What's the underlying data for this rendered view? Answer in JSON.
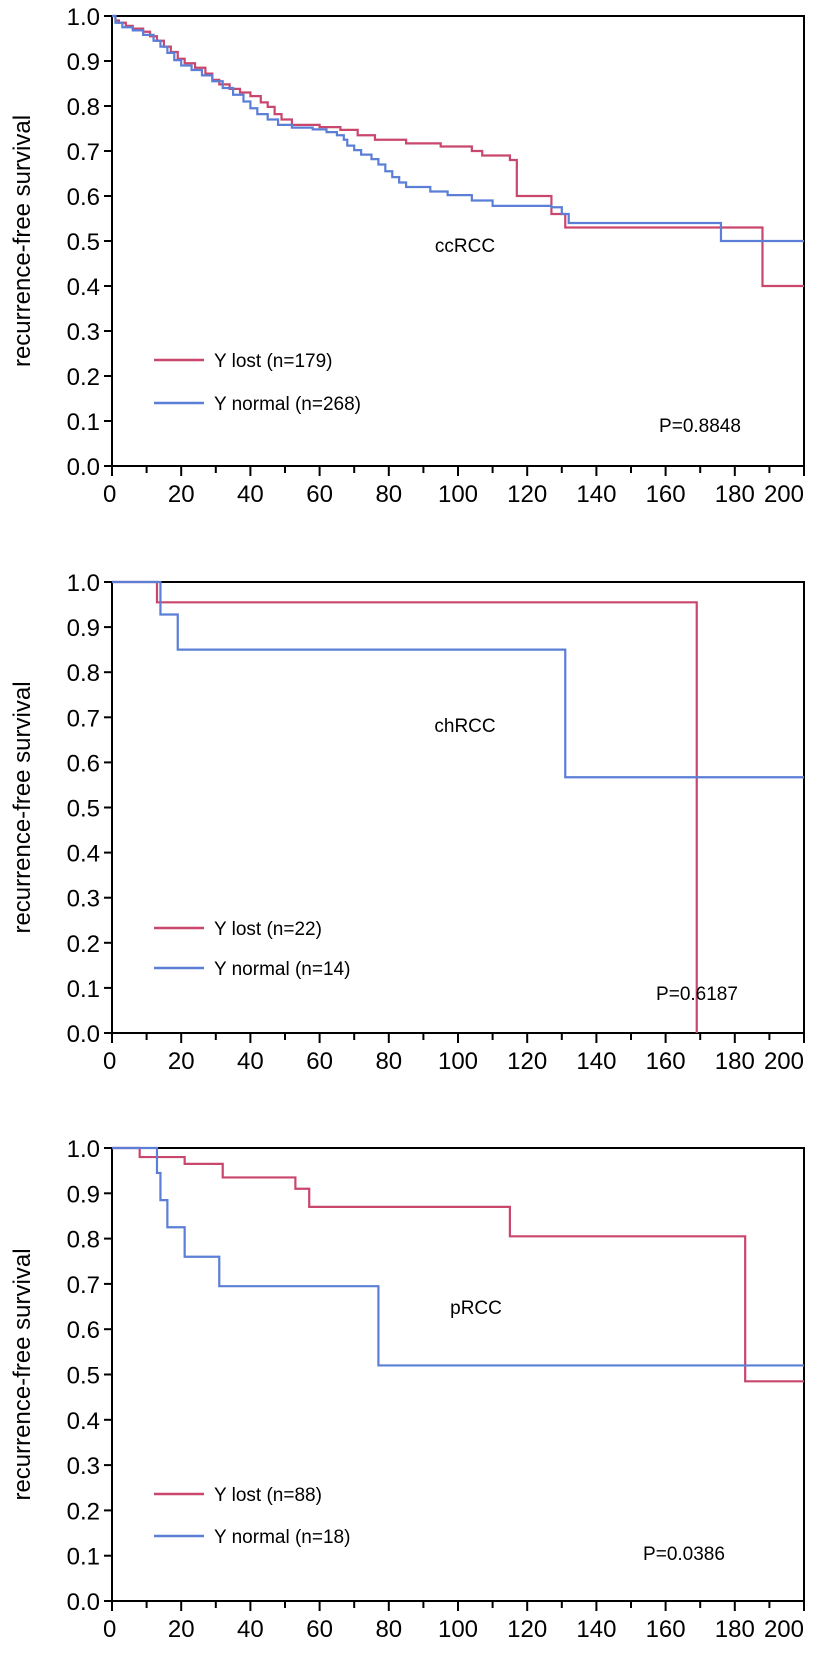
{
  "colors": {
    "y_lost": "#C9466D",
    "y_normal": "#5B7FD6",
    "axis": "#000000",
    "background": "#ffffff"
  },
  "chart_data": [
    {
      "type": "line",
      "subtype": "kaplan-meier",
      "title": "",
      "annotation": "ccRCC",
      "pvalue": "P=0.8848",
      "xlabel": "",
      "ylabel": "recurrence-free survival",
      "xlim": [
        0,
        200
      ],
      "ylim": [
        0,
        1
      ],
      "x_ticks": [
        "0",
        "20",
        "40",
        "60",
        "80",
        "100",
        "120",
        "140",
        "160",
        "180",
        "200"
      ],
      "y_ticks": [
        "0.0",
        "0.1",
        "0.2",
        "0.3",
        "0.4",
        "0.5",
        "0.6",
        "0.7",
        "0.8",
        "0.9",
        "1.0"
      ],
      "grid": false,
      "legend_position": "bottom-left",
      "series": [
        {
          "name": "Y lost (n=179)",
          "color_key": "y_lost",
          "points": [
            [
              0,
              1.0
            ],
            [
              1,
              0.99
            ],
            [
              2,
              0.985
            ],
            [
              4,
              0.978
            ],
            [
              6,
              0.972
            ],
            [
              9,
              0.965
            ],
            [
              11,
              0.955
            ],
            [
              13,
              0.945
            ],
            [
              15,
              0.932
            ],
            [
              17,
              0.92
            ],
            [
              19,
              0.905
            ],
            [
              21,
              0.895
            ],
            [
              24,
              0.885
            ],
            [
              27,
              0.872
            ],
            [
              29,
              0.858
            ],
            [
              31,
              0.848
            ],
            [
              34,
              0.838
            ],
            [
              37,
              0.83
            ],
            [
              40,
              0.822
            ],
            [
              43,
              0.808
            ],
            [
              45,
              0.798
            ],
            [
              47,
              0.782
            ],
            [
              49,
              0.77
            ],
            [
              52,
              0.758
            ],
            [
              60,
              0.753
            ],
            [
              66,
              0.747
            ],
            [
              71,
              0.735
            ],
            [
              76,
              0.725
            ],
            [
              85,
              0.717
            ],
            [
              95,
              0.71
            ],
            [
              104,
              0.7
            ],
            [
              107,
              0.69
            ],
            [
              115,
              0.68
            ],
            [
              117,
              0.6
            ],
            [
              127,
              0.56
            ],
            [
              131,
              0.53
            ],
            [
              160,
              0.53
            ],
            [
              188,
              0.4
            ],
            [
              200,
              0.4
            ]
          ]
        },
        {
          "name": "Y normal (n=268)",
          "color_key": "y_normal",
          "points": [
            [
              0,
              1.0
            ],
            [
              1,
              0.985
            ],
            [
              3,
              0.975
            ],
            [
              6,
              0.968
            ],
            [
              9,
              0.958
            ],
            [
              12,
              0.945
            ],
            [
              14,
              0.932
            ],
            [
              16,
              0.918
            ],
            [
              18,
              0.902
            ],
            [
              20,
              0.89
            ],
            [
              23,
              0.88
            ],
            [
              26,
              0.868
            ],
            [
              29,
              0.855
            ],
            [
              32,
              0.84
            ],
            [
              35,
              0.825
            ],
            [
              38,
              0.81
            ],
            [
              40,
              0.795
            ],
            [
              42,
              0.782
            ],
            [
              45,
              0.77
            ],
            [
              48,
              0.758
            ],
            [
              52,
              0.752
            ],
            [
              58,
              0.748
            ],
            [
              62,
              0.742
            ],
            [
              65,
              0.735
            ],
            [
              67,
              0.725
            ],
            [
              68,
              0.712
            ],
            [
              70,
              0.702
            ],
            [
              72,
              0.692
            ],
            [
              75,
              0.682
            ],
            [
              77,
              0.67
            ],
            [
              79,
              0.655
            ],
            [
              81,
              0.642
            ],
            [
              83,
              0.63
            ],
            [
              85,
              0.62
            ],
            [
              92,
              0.61
            ],
            [
              97,
              0.602
            ],
            [
              104,
              0.59
            ],
            [
              110,
              0.578
            ],
            [
              127,
              0.575
            ],
            [
              130,
              0.56
            ],
            [
              132,
              0.54
            ],
            [
              176,
              0.535
            ],
            [
              176,
              0.5
            ],
            [
              200,
              0.5
            ]
          ]
        }
      ]
    },
    {
      "type": "line",
      "subtype": "kaplan-meier",
      "title": "",
      "annotation": "chRCC",
      "pvalue": "P=0.6187",
      "xlabel": "",
      "ylabel": "recurrence-free survival",
      "xlim": [
        0,
        200
      ],
      "ylim": [
        0,
        1
      ],
      "x_ticks": [
        "0",
        "20",
        "40",
        "60",
        "80",
        "100",
        "120",
        "140",
        "160",
        "180",
        "200"
      ],
      "y_ticks": [
        "0.0",
        "0.1",
        "0.2",
        "0.3",
        "0.4",
        "0.5",
        "0.6",
        "0.7",
        "0.8",
        "0.9",
        "1.0"
      ],
      "grid": false,
      "legend_position": "bottom-left",
      "series": [
        {
          "name": "Y lost (n=22)",
          "color_key": "y_lost",
          "points": [
            [
              0,
              1.0
            ],
            [
              13,
              0.955
            ],
            [
              169,
              0.0
            ]
          ]
        },
        {
          "name": "Y normal (n=14)",
          "color_key": "y_normal",
          "points": [
            [
              0,
              1.0
            ],
            [
              14,
              0.928
            ],
            [
              19,
              0.85
            ],
            [
              131,
              0.567
            ],
            [
              200,
              0.567
            ]
          ]
        }
      ]
    },
    {
      "type": "line",
      "subtype": "kaplan-meier",
      "title": "",
      "annotation": "pRCC",
      "pvalue": "P=0.0386",
      "xlabel": "",
      "ylabel": "recurrence-free survival",
      "xlim": [
        0,
        200
      ],
      "ylim": [
        0,
        1
      ],
      "x_ticks": [
        "0",
        "20",
        "40",
        "60",
        "80",
        "100",
        "120",
        "140",
        "160",
        "180",
        "200"
      ],
      "y_ticks": [
        "0.0",
        "0.1",
        "0.2",
        "0.3",
        "0.4",
        "0.5",
        "0.6",
        "0.7",
        "0.8",
        "0.9",
        "1.0"
      ],
      "grid": false,
      "legend_position": "bottom-left",
      "series": [
        {
          "name": "Y lost (n=88)",
          "color_key": "y_lost",
          "points": [
            [
              0,
              1.0
            ],
            [
              8,
              0.98
            ],
            [
              21,
              0.965
            ],
            [
              32,
              0.935
            ],
            [
              53,
              0.91
            ],
            [
              57,
              0.87
            ],
            [
              115,
              0.805
            ],
            [
              183,
              0.485
            ],
            [
              200,
              0.485
            ]
          ]
        },
        {
          "name": "Y normal (n=18)",
          "color_key": "y_normal",
          "points": [
            [
              0,
              1.0
            ],
            [
              13,
              0.945
            ],
            [
              14,
              0.885
            ],
            [
              16,
              0.825
            ],
            [
              21,
              0.76
            ],
            [
              31,
              0.695
            ],
            [
              77,
              0.52
            ],
            [
              200,
              0.52
            ]
          ]
        }
      ]
    }
  ]
}
